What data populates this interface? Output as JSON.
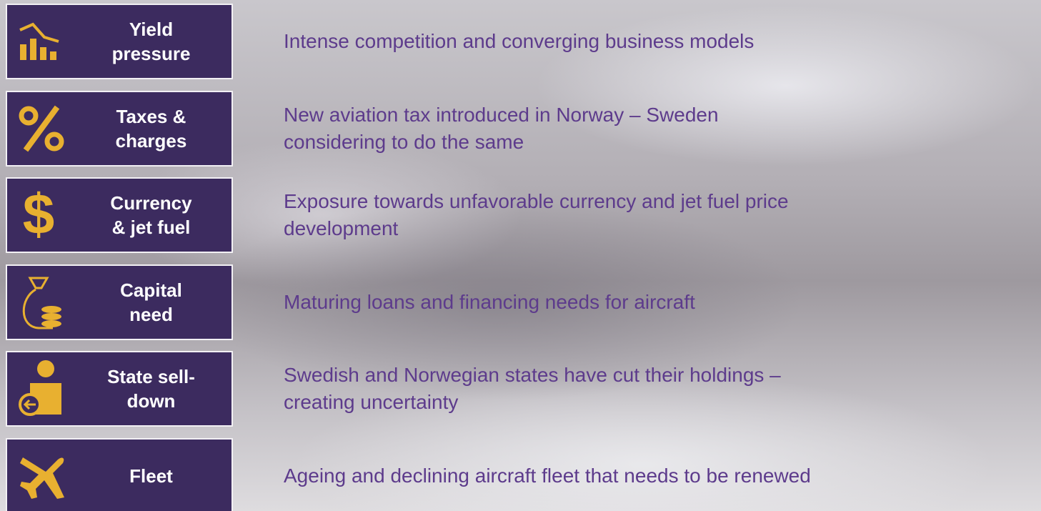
{
  "items": [
    {
      "label": [
        "Yield",
        "pressure"
      ],
      "description": [
        "Intense competition and converging business models"
      ]
    },
    {
      "label": [
        "Taxes &",
        "charges"
      ],
      "description": [
        "New aviation tax introduced in Norway – Sweden",
        "considering to do the same"
      ]
    },
    {
      "label": [
        "Currency",
        "& jet fuel"
      ],
      "description": [
        "Exposure towards unfavorable currency and jet fuel price",
        "development"
      ]
    },
    {
      "label": [
        "Capital",
        "need"
      ],
      "description": [
        "Maturing loans and financing needs for aircraft"
      ]
    },
    {
      "label": [
        "State sell-",
        "down"
      ],
      "description": [
        "Swedish and Norwegian states have cut their holdings –",
        "creating uncertainty"
      ]
    },
    {
      "label": [
        "Fleet"
      ],
      "description": [
        "Ageing and declining aircraft fleet that needs to be renewed"
      ]
    }
  ]
}
